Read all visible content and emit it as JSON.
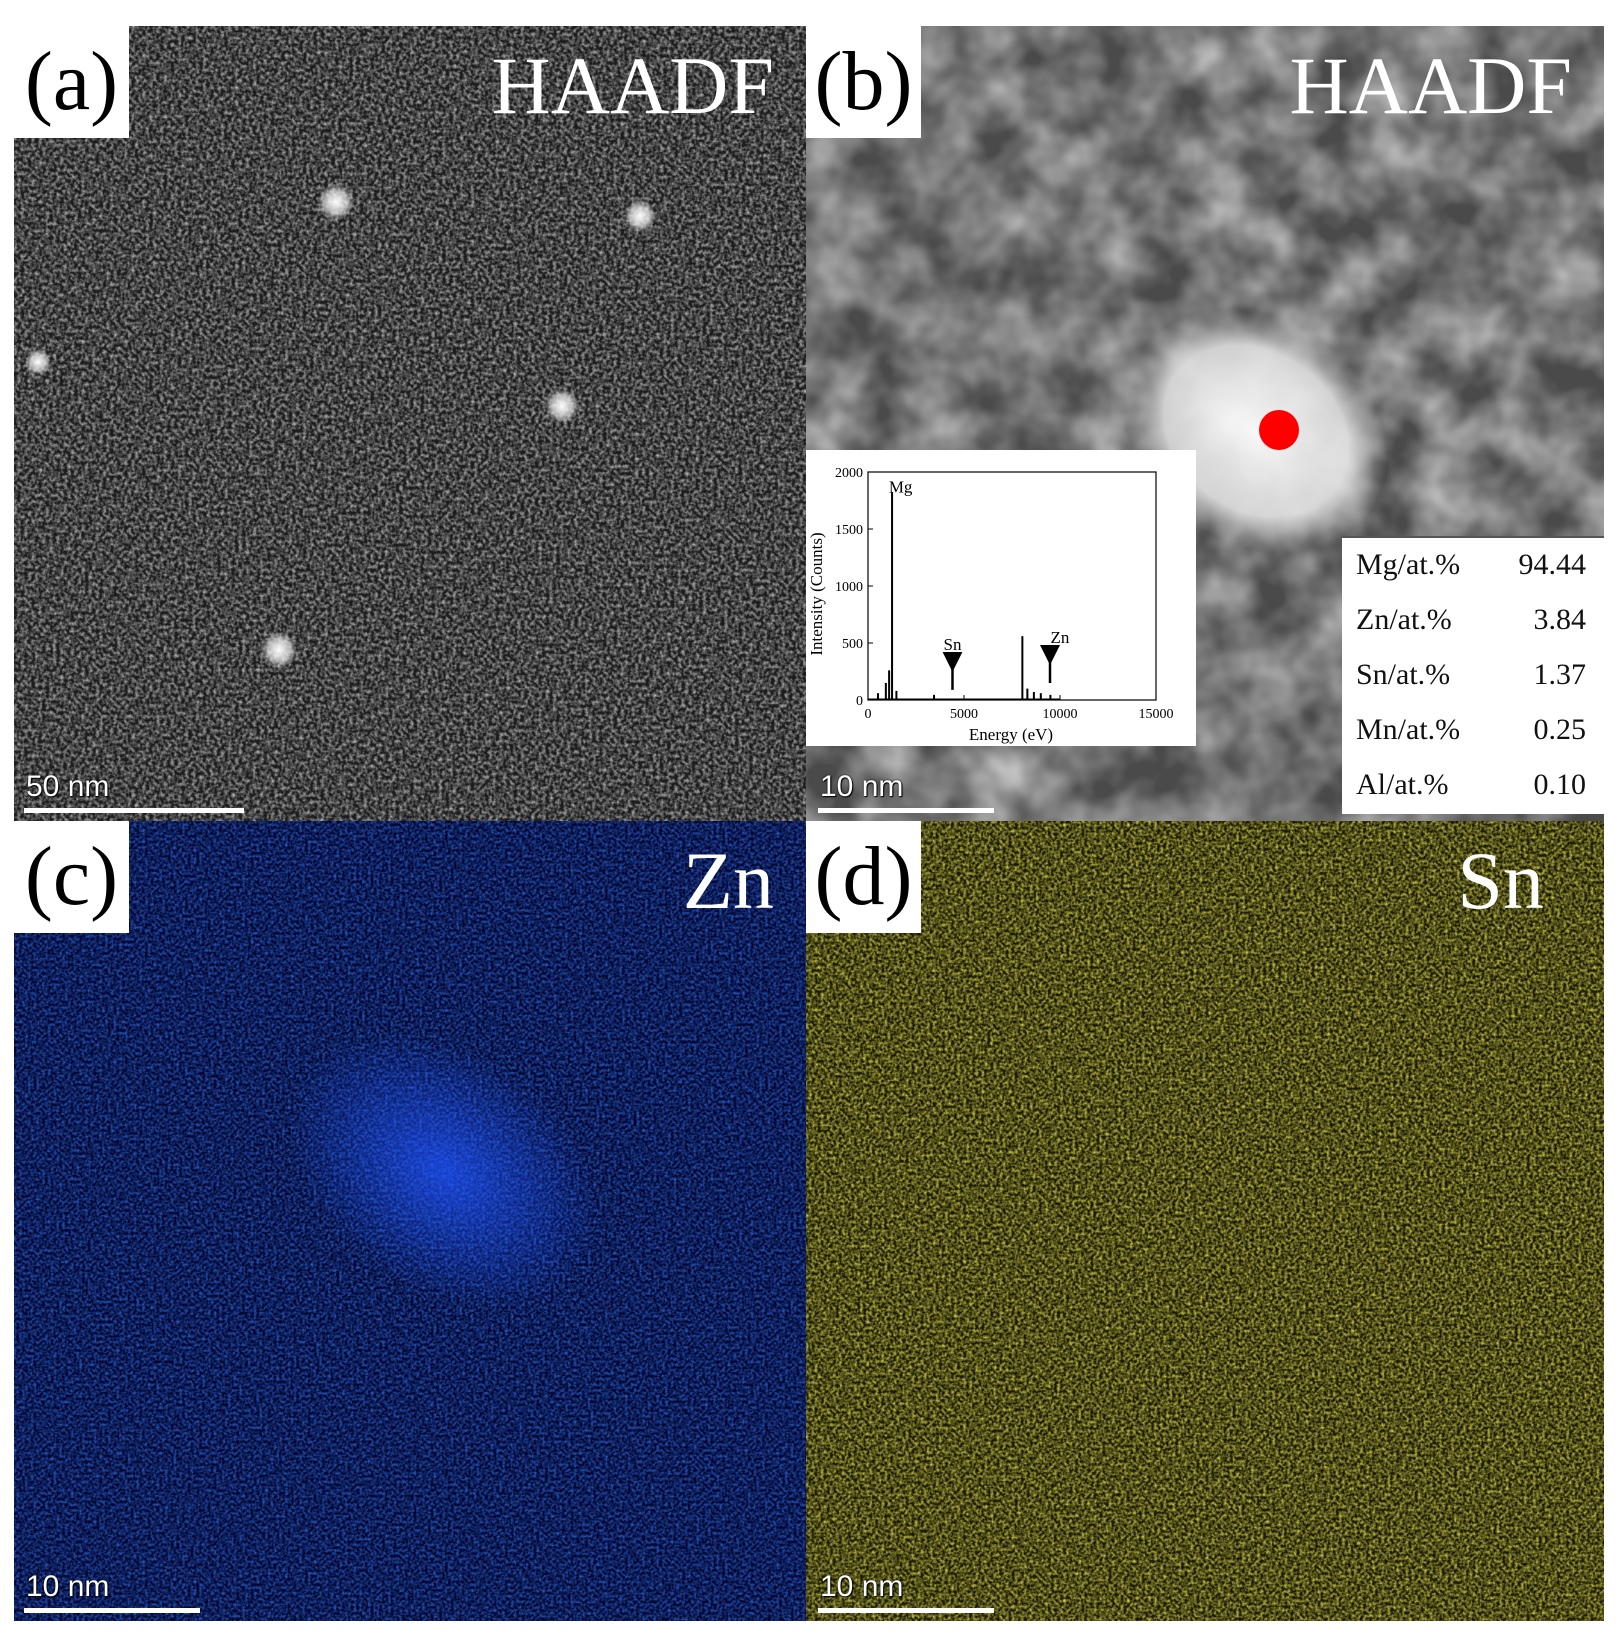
{
  "panels": {
    "a": {
      "label": "(a)",
      "title": "HAADF",
      "scale_bar": "50 nm"
    },
    "b": {
      "label": "(b)",
      "title": "HAADF",
      "scale_bar": "10 nm",
      "marker_color": "#ff0000",
      "composition": [
        {
          "element": "Mg/at.%",
          "value": "94.44"
        },
        {
          "element": "Zn/at.%",
          "value": "3.84"
        },
        {
          "element": "Sn/at.%",
          "value": "1.37"
        },
        {
          "element": "Mn/at.%",
          "value": "0.25"
        },
        {
          "element": "Al/at.%",
          "value": "0.10"
        }
      ]
    },
    "c": {
      "label": "(c)",
      "title": "Zn",
      "scale_bar": "10 nm",
      "map_color": "#0a2fd0"
    },
    "d": {
      "label": "(d)",
      "title": "Sn",
      "scale_bar": "10 nm",
      "map_color": "#d8d21a"
    }
  },
  "chart_data": {
    "type": "line",
    "xlabel": "Energy (eV)",
    "ylabel": "Intensity (Counts)",
    "xlim": [
      0,
      15000
    ],
    "ylim": [
      0,
      2000
    ],
    "xticks": [
      "0",
      "5000",
      "10000",
      "15000"
    ],
    "yticks": [
      "0",
      "500",
      "1000",
      "1500",
      "2000"
    ],
    "peaks": [
      {
        "x": 520,
        "y": 60
      },
      {
        "x": 930,
        "y": 150
      },
      {
        "x": 1100,
        "y": 260
      },
      {
        "x": 1253,
        "y": 1820
      },
      {
        "x": 1480,
        "y": 80
      },
      {
        "x": 3440,
        "y": 45
      },
      {
        "x": 8040,
        "y": 560
      },
      {
        "x": 8300,
        "y": 100
      },
      {
        "x": 8640,
        "y": 70
      },
      {
        "x": 9000,
        "y": 60
      },
      {
        "x": 9500,
        "y": 45
      }
    ],
    "annotations": [
      {
        "text": "Mg",
        "x": 1700,
        "y": 1820
      },
      {
        "text": "Sn",
        "x": 4400,
        "y": 440
      },
      {
        "text": "Zn",
        "x": 10000,
        "y": 500
      }
    ]
  }
}
